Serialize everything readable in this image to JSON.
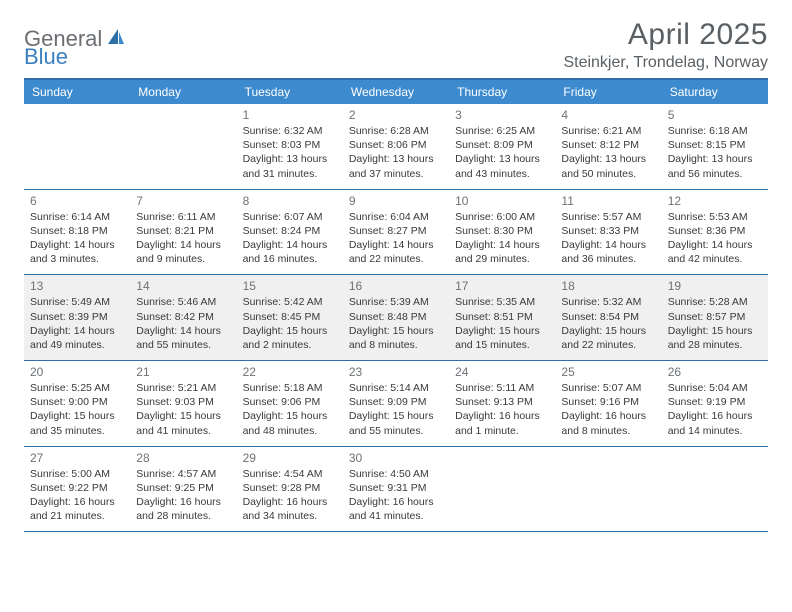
{
  "brand": {
    "part1": "General",
    "part2": "Blue"
  },
  "title": "April 2025",
  "location": "Steinkjer, Trondelag, Norway",
  "colors": {
    "header_bg": "#3d8bce",
    "border": "#2f6fa8",
    "shaded_bg": "#f0f0f0",
    "text_gray": "#5a5f63",
    "brand_gray": "#6b6f73",
    "brand_blue": "#3a7fc0"
  },
  "weekdays": [
    "Sunday",
    "Monday",
    "Tuesday",
    "Wednesday",
    "Thursday",
    "Friday",
    "Saturday"
  ],
  "weeks": [
    {
      "shaded": false,
      "days": [
        {
          "num": "",
          "sunrise": "",
          "sunset": "",
          "daylight": ""
        },
        {
          "num": "",
          "sunrise": "",
          "sunset": "",
          "daylight": ""
        },
        {
          "num": "1",
          "sunrise": "Sunrise: 6:32 AM",
          "sunset": "Sunset: 8:03 PM",
          "daylight": "Daylight: 13 hours and 31 minutes."
        },
        {
          "num": "2",
          "sunrise": "Sunrise: 6:28 AM",
          "sunset": "Sunset: 8:06 PM",
          "daylight": "Daylight: 13 hours and 37 minutes."
        },
        {
          "num": "3",
          "sunrise": "Sunrise: 6:25 AM",
          "sunset": "Sunset: 8:09 PM",
          "daylight": "Daylight: 13 hours and 43 minutes."
        },
        {
          "num": "4",
          "sunrise": "Sunrise: 6:21 AM",
          "sunset": "Sunset: 8:12 PM",
          "daylight": "Daylight: 13 hours and 50 minutes."
        },
        {
          "num": "5",
          "sunrise": "Sunrise: 6:18 AM",
          "sunset": "Sunset: 8:15 PM",
          "daylight": "Daylight: 13 hours and 56 minutes."
        }
      ]
    },
    {
      "shaded": false,
      "days": [
        {
          "num": "6",
          "sunrise": "Sunrise: 6:14 AM",
          "sunset": "Sunset: 8:18 PM",
          "daylight": "Daylight: 14 hours and 3 minutes."
        },
        {
          "num": "7",
          "sunrise": "Sunrise: 6:11 AM",
          "sunset": "Sunset: 8:21 PM",
          "daylight": "Daylight: 14 hours and 9 minutes."
        },
        {
          "num": "8",
          "sunrise": "Sunrise: 6:07 AM",
          "sunset": "Sunset: 8:24 PM",
          "daylight": "Daylight: 14 hours and 16 minutes."
        },
        {
          "num": "9",
          "sunrise": "Sunrise: 6:04 AM",
          "sunset": "Sunset: 8:27 PM",
          "daylight": "Daylight: 14 hours and 22 minutes."
        },
        {
          "num": "10",
          "sunrise": "Sunrise: 6:00 AM",
          "sunset": "Sunset: 8:30 PM",
          "daylight": "Daylight: 14 hours and 29 minutes."
        },
        {
          "num": "11",
          "sunrise": "Sunrise: 5:57 AM",
          "sunset": "Sunset: 8:33 PM",
          "daylight": "Daylight: 14 hours and 36 minutes."
        },
        {
          "num": "12",
          "sunrise": "Sunrise: 5:53 AM",
          "sunset": "Sunset: 8:36 PM",
          "daylight": "Daylight: 14 hours and 42 minutes."
        }
      ]
    },
    {
      "shaded": true,
      "days": [
        {
          "num": "13",
          "sunrise": "Sunrise: 5:49 AM",
          "sunset": "Sunset: 8:39 PM",
          "daylight": "Daylight: 14 hours and 49 minutes."
        },
        {
          "num": "14",
          "sunrise": "Sunrise: 5:46 AM",
          "sunset": "Sunset: 8:42 PM",
          "daylight": "Daylight: 14 hours and 55 minutes."
        },
        {
          "num": "15",
          "sunrise": "Sunrise: 5:42 AM",
          "sunset": "Sunset: 8:45 PM",
          "daylight": "Daylight: 15 hours and 2 minutes."
        },
        {
          "num": "16",
          "sunrise": "Sunrise: 5:39 AM",
          "sunset": "Sunset: 8:48 PM",
          "daylight": "Daylight: 15 hours and 8 minutes."
        },
        {
          "num": "17",
          "sunrise": "Sunrise: 5:35 AM",
          "sunset": "Sunset: 8:51 PM",
          "daylight": "Daylight: 15 hours and 15 minutes."
        },
        {
          "num": "18",
          "sunrise": "Sunrise: 5:32 AM",
          "sunset": "Sunset: 8:54 PM",
          "daylight": "Daylight: 15 hours and 22 minutes."
        },
        {
          "num": "19",
          "sunrise": "Sunrise: 5:28 AM",
          "sunset": "Sunset: 8:57 PM",
          "daylight": "Daylight: 15 hours and 28 minutes."
        }
      ]
    },
    {
      "shaded": false,
      "days": [
        {
          "num": "20",
          "sunrise": "Sunrise: 5:25 AM",
          "sunset": "Sunset: 9:00 PM",
          "daylight": "Daylight: 15 hours and 35 minutes."
        },
        {
          "num": "21",
          "sunrise": "Sunrise: 5:21 AM",
          "sunset": "Sunset: 9:03 PM",
          "daylight": "Daylight: 15 hours and 41 minutes."
        },
        {
          "num": "22",
          "sunrise": "Sunrise: 5:18 AM",
          "sunset": "Sunset: 9:06 PM",
          "daylight": "Daylight: 15 hours and 48 minutes."
        },
        {
          "num": "23",
          "sunrise": "Sunrise: 5:14 AM",
          "sunset": "Sunset: 9:09 PM",
          "daylight": "Daylight: 15 hours and 55 minutes."
        },
        {
          "num": "24",
          "sunrise": "Sunrise: 5:11 AM",
          "sunset": "Sunset: 9:13 PM",
          "daylight": "Daylight: 16 hours and 1 minute."
        },
        {
          "num": "25",
          "sunrise": "Sunrise: 5:07 AM",
          "sunset": "Sunset: 9:16 PM",
          "daylight": "Daylight: 16 hours and 8 minutes."
        },
        {
          "num": "26",
          "sunrise": "Sunrise: 5:04 AM",
          "sunset": "Sunset: 9:19 PM",
          "daylight": "Daylight: 16 hours and 14 minutes."
        }
      ]
    },
    {
      "shaded": false,
      "days": [
        {
          "num": "27",
          "sunrise": "Sunrise: 5:00 AM",
          "sunset": "Sunset: 9:22 PM",
          "daylight": "Daylight: 16 hours and 21 minutes."
        },
        {
          "num": "28",
          "sunrise": "Sunrise: 4:57 AM",
          "sunset": "Sunset: 9:25 PM",
          "daylight": "Daylight: 16 hours and 28 minutes."
        },
        {
          "num": "29",
          "sunrise": "Sunrise: 4:54 AM",
          "sunset": "Sunset: 9:28 PM",
          "daylight": "Daylight: 16 hours and 34 minutes."
        },
        {
          "num": "30",
          "sunrise": "Sunrise: 4:50 AM",
          "sunset": "Sunset: 9:31 PM",
          "daylight": "Daylight: 16 hours and 41 minutes."
        },
        {
          "num": "",
          "sunrise": "",
          "sunset": "",
          "daylight": ""
        },
        {
          "num": "",
          "sunrise": "",
          "sunset": "",
          "daylight": ""
        },
        {
          "num": "",
          "sunrise": "",
          "sunset": "",
          "daylight": ""
        }
      ]
    }
  ]
}
